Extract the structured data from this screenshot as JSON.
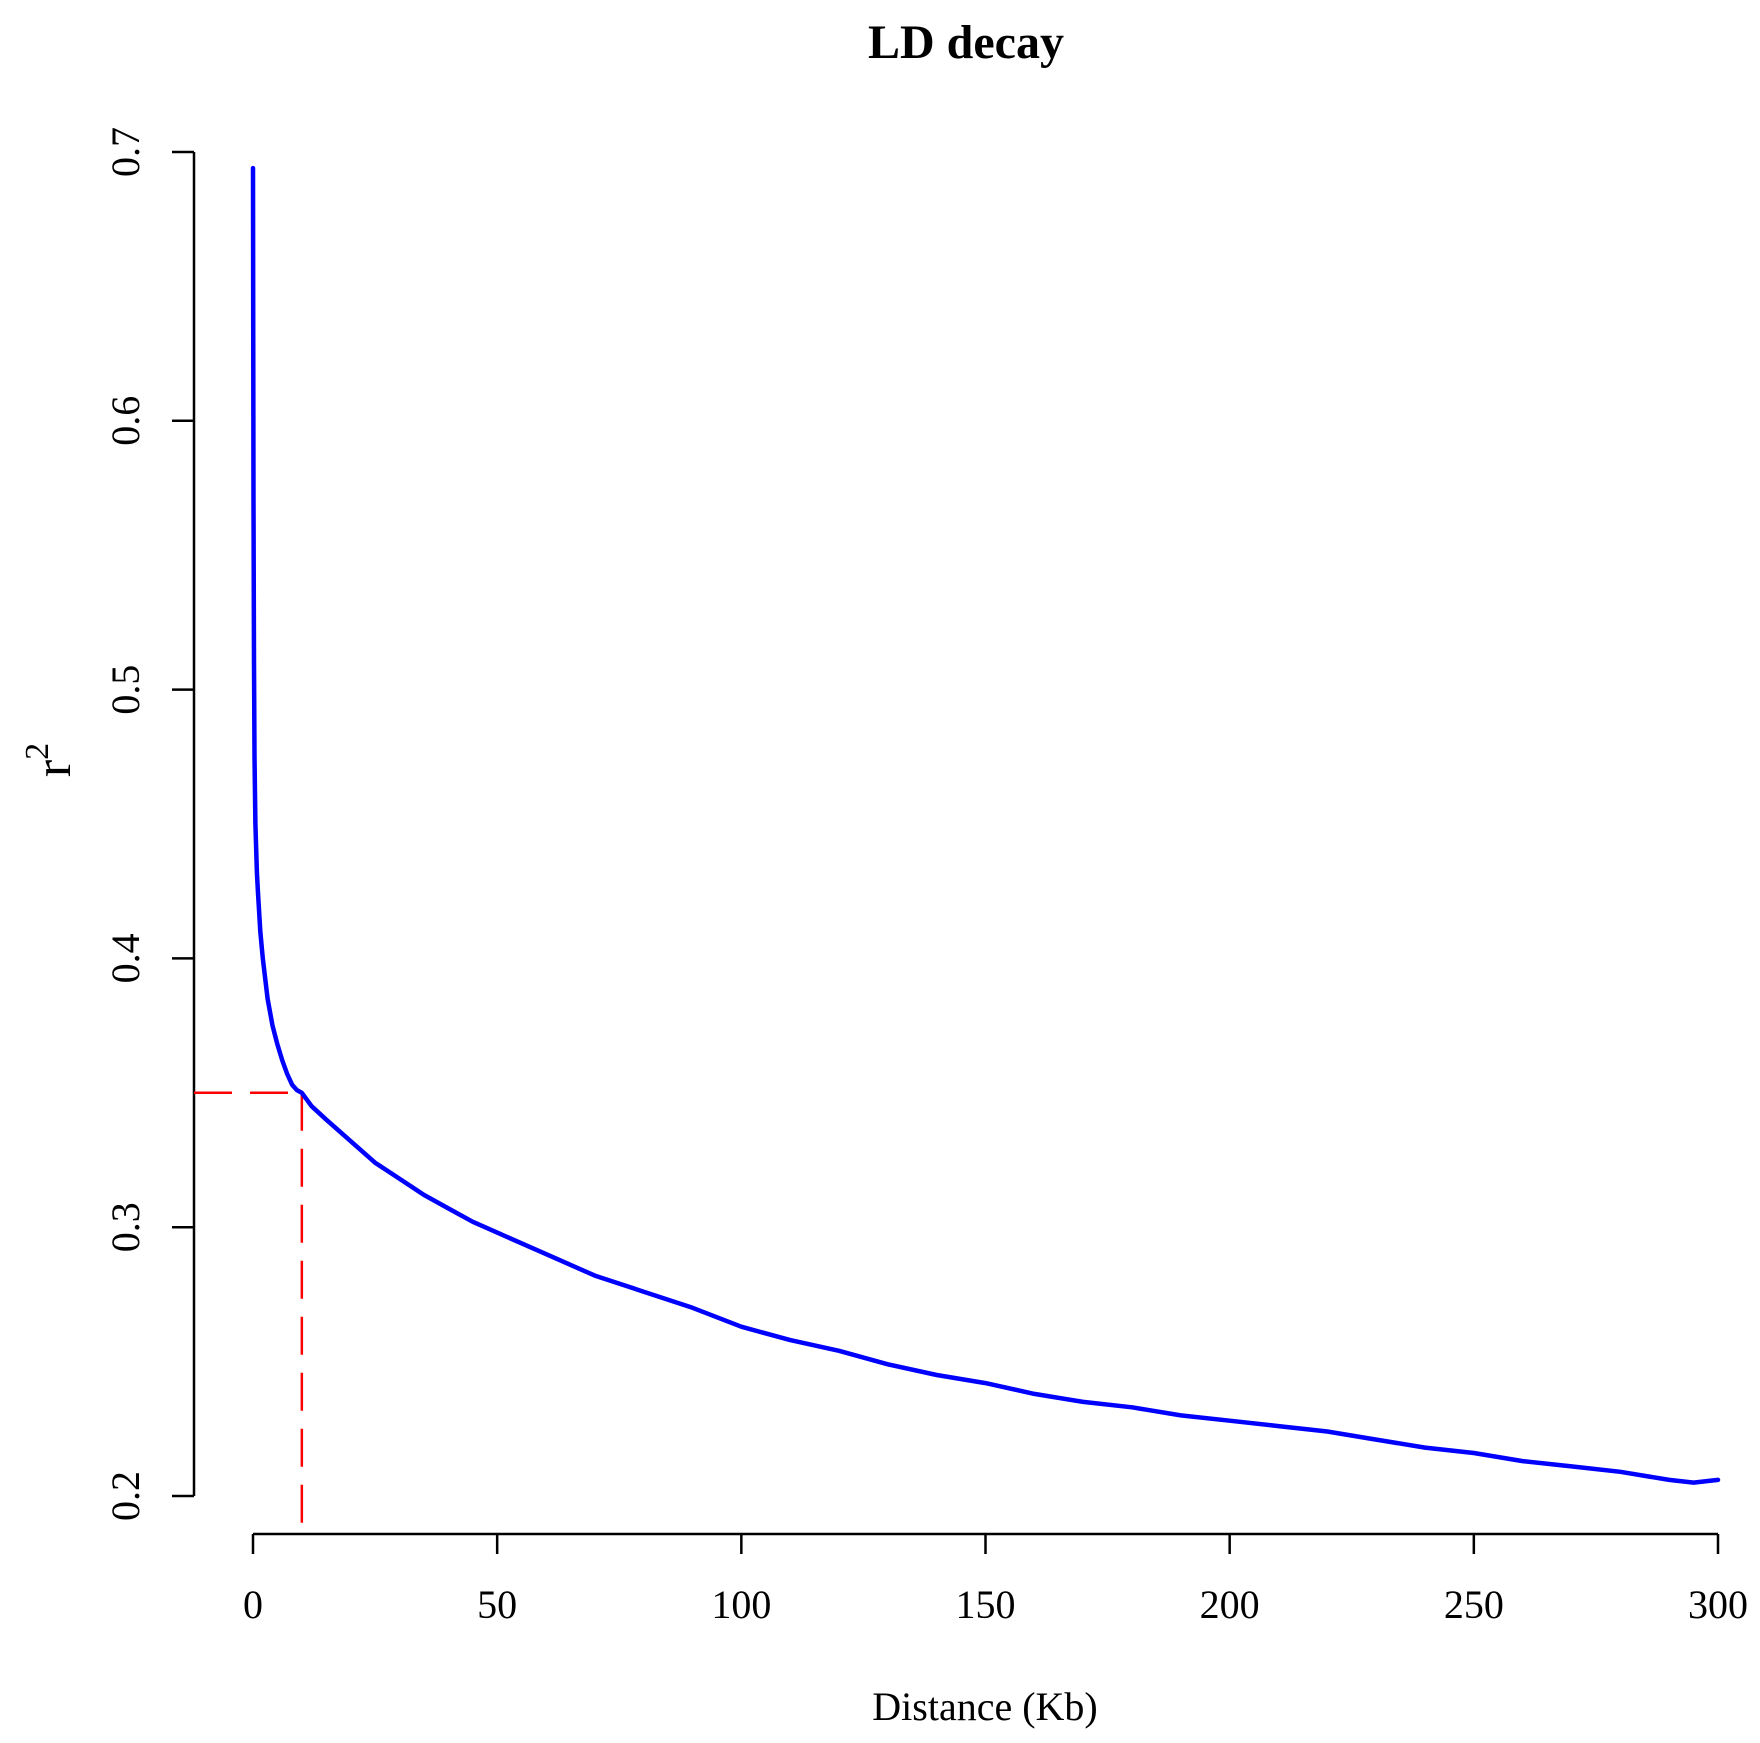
{
  "colors": {
    "curve": "#0000ff",
    "threshold": "#ff0000",
    "axis": "#000000"
  },
  "chart_data": {
    "type": "line",
    "title": "LD decay",
    "xlabel": "Distance (Kb)",
    "ylabel": "r",
    "ylabel_superscript": "2",
    "xlim": [
      0,
      300
    ],
    "ylim": [
      0.2,
      0.7
    ],
    "xticks": [
      "0",
      "50",
      "100",
      "150",
      "200",
      "250",
      "300"
    ],
    "yticks": [
      "0.2",
      "0.3",
      "0.4",
      "0.5",
      "0.6",
      "0.7"
    ],
    "grid": false,
    "series": [
      {
        "x": [
          0,
          0.05,
          0.1,
          0.2,
          0.3,
          0.5,
          0.8,
          1,
          1.5,
          2,
          3,
          4,
          5,
          6,
          7,
          8,
          9,
          10,
          12,
          15,
          20,
          25,
          30,
          35,
          40,
          45,
          50,
          60,
          70,
          80,
          90,
          100,
          110,
          120,
          130,
          140,
          150,
          160,
          170,
          180,
          190,
          200,
          210,
          220,
          230,
          240,
          250,
          260,
          270,
          280,
          290,
          295,
          300
        ],
        "y": [
          0.694,
          0.64,
          0.57,
          0.51,
          0.475,
          0.45,
          0.432,
          0.425,
          0.41,
          0.4,
          0.385,
          0.375,
          0.368,
          0.362,
          0.357,
          0.353,
          0.351,
          0.35,
          0.345,
          0.34,
          0.332,
          0.324,
          0.318,
          0.312,
          0.307,
          0.302,
          0.298,
          0.29,
          0.282,
          0.276,
          0.27,
          0.263,
          0.258,
          0.254,
          0.249,
          0.245,
          0.242,
          0.238,
          0.235,
          0.233,
          0.23,
          0.228,
          0.226,
          0.224,
          0.221,
          0.218,
          0.216,
          0.213,
          0.211,
          0.209,
          0.206,
          0.205,
          0.206
        ]
      }
    ],
    "annotations": [
      {
        "type": "threshold",
        "x": 10,
        "y": 0.35
      }
    ]
  }
}
